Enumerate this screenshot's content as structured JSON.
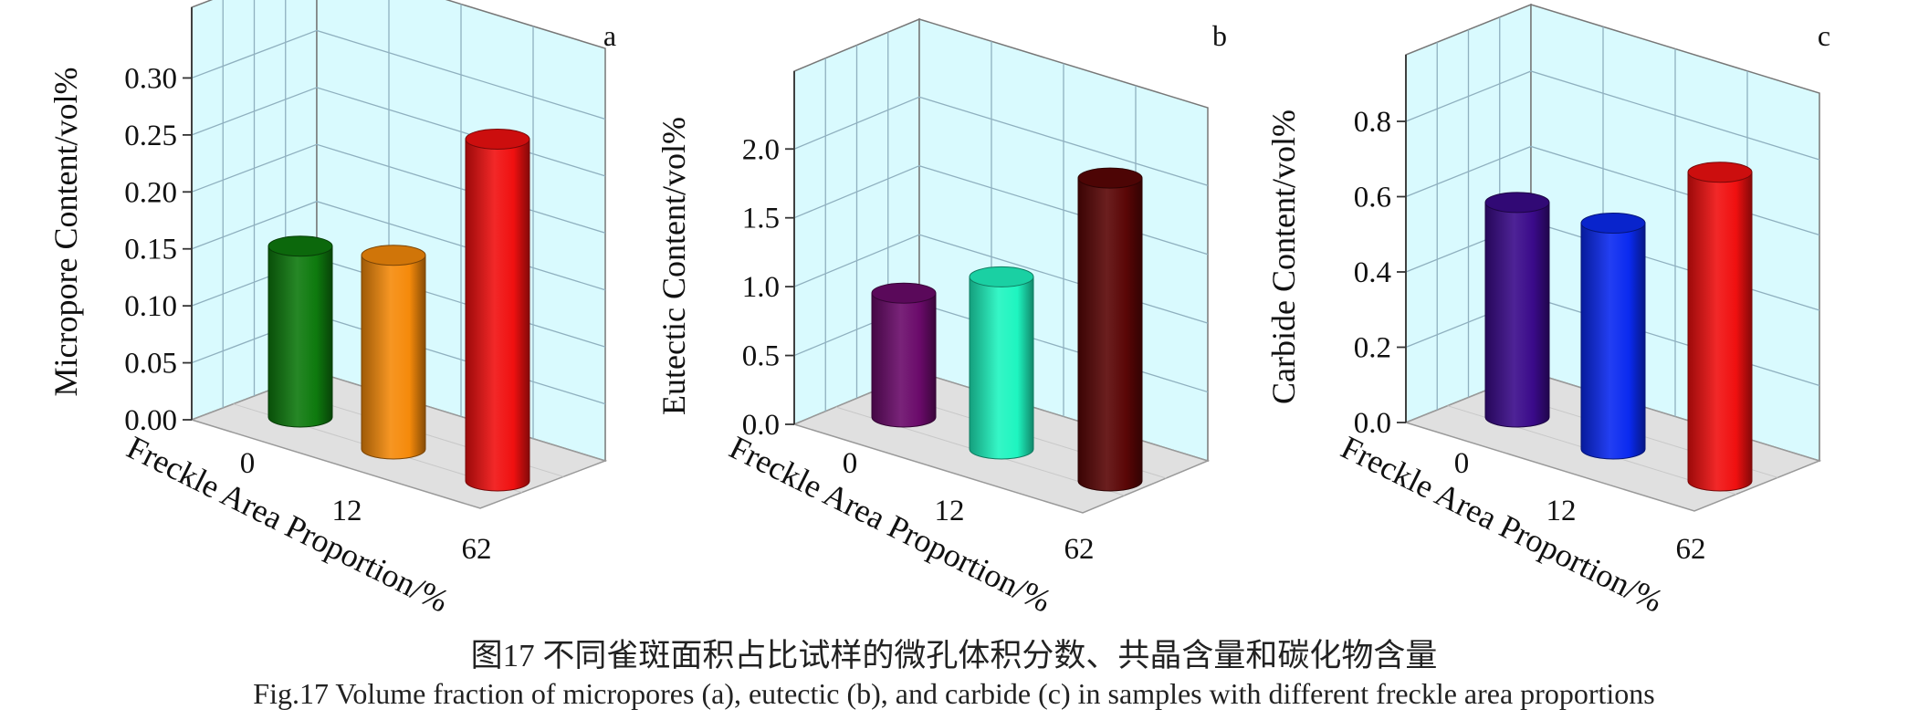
{
  "chart_data": [
    {
      "type": "bar",
      "style": "3d-cylinder",
      "panel_label": "a",
      "categories": [
        "0",
        "12",
        "62"
      ],
      "values": [
        0.15,
        0.17,
        0.3
      ],
      "colors": [
        "#0e7a0e",
        "#f58a0b",
        "#f01010"
      ],
      "xlabel": "Freckle Area Proportion/%",
      "ylabel": "Micropore Content/vol%",
      "yticks": [
        "0.00",
        "0.05",
        "0.10",
        "0.15",
        "0.20",
        "0.25",
        "0.30"
      ],
      "ylim": [
        0,
        0.33
      ],
      "grid": true
    },
    {
      "type": "bar",
      "style": "3d-cylinder",
      "panel_label": "b",
      "categories": [
        "0",
        "12",
        "62"
      ],
      "values": [
        0.9,
        1.25,
        2.2
      ],
      "colors": [
        "#6a0a6a",
        "#1ef5c0",
        "#5a0606"
      ],
      "xlabel": "Freckle Area Proportion/%",
      "ylabel": "Eutectic Content/vol%",
      "yticks": [
        "0.0",
        "0.5",
        "1.0",
        "1.5",
        "2.0"
      ],
      "ylim": [
        0,
        2.3
      ],
      "grid": true
    },
    {
      "type": "bar",
      "style": "3d-cylinder",
      "panel_label": "c",
      "categories": [
        "0",
        "12",
        "62"
      ],
      "values": [
        0.57,
        0.6,
        0.82
      ],
      "colors": [
        "#3a0a8a",
        "#0a2af0",
        "#f01010"
      ],
      "xlabel": "Freckle Area Proportion/%",
      "ylabel": "Carbide Content/vol%",
      "yticks": [
        "0.0",
        "0.2",
        "0.4",
        "0.6",
        "0.8"
      ],
      "ylim": [
        0,
        0.88
      ],
      "grid": true
    }
  ],
  "caption": {
    "cn": "图17  不同雀斑面积占比试样的微孔体积分数、共晶含量和碳化物含量",
    "en": "Fig.17  Volume fraction of micropores (a), eutectic (b), and carbide (c) in samples with different freckle area proportions"
  },
  "style": {
    "wall_color": "#d9fafe",
    "floor_color": "#e0e0e0",
    "grid_color": "#8fb0bf"
  }
}
